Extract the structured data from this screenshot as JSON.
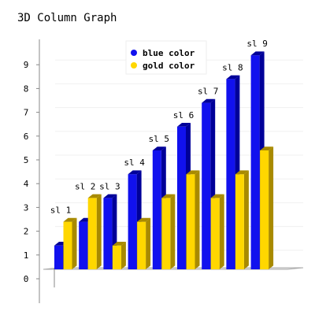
{
  "chart_data": {
    "type": "bar",
    "subtype": "3d-column",
    "title": "3D Column Graph",
    "categories": [
      "sl 1",
      "sl 2",
      "sl 3",
      "sl 4",
      "sl 5",
      "sl 6",
      "sl 7",
      "sl 8",
      "sl 9"
    ],
    "series": [
      {
        "name": "blue color",
        "values": [
          1,
          2,
          3,
          4,
          5,
          6,
          7,
          8,
          9
        ],
        "color": "#1111ee",
        "shade": "#000099"
      },
      {
        "name": "gold color",
        "values": [
          2,
          3,
          1,
          2,
          3,
          4,
          3,
          4,
          5
        ],
        "color": "#ffd700",
        "shade": "#a88a00"
      }
    ],
    "y_ticks": [
      "0",
      "1",
      "2",
      "3",
      "4",
      "5",
      "6",
      "7",
      "8",
      "9"
    ],
    "ylim": [
      0,
      10
    ],
    "xlabel": "",
    "ylabel": "",
    "grid": true,
    "legend_position": "top-center"
  }
}
